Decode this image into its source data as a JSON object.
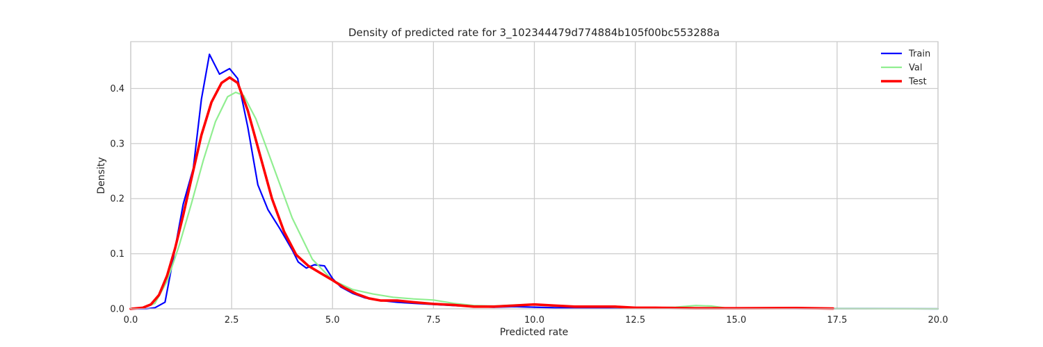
{
  "chart_data": {
    "type": "line",
    "title": "Density of predicted rate for 3_102344479d774884b105f00bc553288a",
    "xlabel": "Predicted rate",
    "ylabel": "Density",
    "xlim": [
      0,
      20
    ],
    "ylim": [
      0,
      0.485
    ],
    "x_ticks": [
      0,
      2.5,
      5,
      7.5,
      10,
      12.5,
      15,
      17.5,
      20
    ],
    "x_tick_labels": [
      "0.0",
      "2.5",
      "5.0",
      "7.5",
      "10.0",
      "12.5",
      "15.0",
      "17.5",
      "20.0"
    ],
    "y_ticks": [
      0,
      0.1,
      0.2,
      0.3,
      0.4
    ],
    "y_tick_labels": [
      "0.0",
      "0.1",
      "0.2",
      "0.3",
      "0.4"
    ],
    "grid": true,
    "legend_position": "top-right",
    "series": [
      {
        "name": "Train",
        "color": "#0000ff",
        "line_width": 2.2,
        "points": [
          [
            0.0,
            0.0
          ],
          [
            0.4,
            0.0
          ],
          [
            0.6,
            0.002
          ],
          [
            0.85,
            0.012
          ],
          [
            1.05,
            0.09
          ],
          [
            1.3,
            0.19
          ],
          [
            1.55,
            0.255
          ],
          [
            1.75,
            0.38
          ],
          [
            1.95,
            0.462
          ],
          [
            2.2,
            0.426
          ],
          [
            2.45,
            0.436
          ],
          [
            2.65,
            0.418
          ],
          [
            2.9,
            0.33
          ],
          [
            3.15,
            0.225
          ],
          [
            3.4,
            0.18
          ],
          [
            3.7,
            0.145
          ],
          [
            4.0,
            0.107
          ],
          [
            4.15,
            0.085
          ],
          [
            4.35,
            0.074
          ],
          [
            4.55,
            0.08
          ],
          [
            4.8,
            0.078
          ],
          [
            5.0,
            0.055
          ],
          [
            5.2,
            0.04
          ],
          [
            5.5,
            0.028
          ],
          [
            5.8,
            0.02
          ],
          [
            6.2,
            0.015
          ],
          [
            6.6,
            0.012
          ],
          [
            7.0,
            0.01
          ],
          [
            7.5,
            0.008
          ],
          [
            8.0,
            0.006
          ],
          [
            8.5,
            0.004
          ],
          [
            9.0,
            0.003
          ],
          [
            9.5,
            0.004
          ],
          [
            10.0,
            0.003
          ],
          [
            10.5,
            0.002
          ],
          [
            11.0,
            0.002
          ],
          [
            12.0,
            0.002
          ],
          [
            13.0,
            0.001
          ],
          [
            14.0,
            0.001
          ],
          [
            15.0,
            0.001
          ],
          [
            17.0,
            0.0005
          ],
          [
            20.0,
            0.0
          ]
        ]
      },
      {
        "name": "Val",
        "color": "#90ee90",
        "line_width": 2.2,
        "points": [
          [
            0.0,
            0.0
          ],
          [
            0.3,
            0.001
          ],
          [
            0.6,
            0.01
          ],
          [
            0.9,
            0.05
          ],
          [
            1.2,
            0.115
          ],
          [
            1.5,
            0.19
          ],
          [
            1.8,
            0.27
          ],
          [
            2.1,
            0.34
          ],
          [
            2.4,
            0.385
          ],
          [
            2.6,
            0.393
          ],
          [
            2.8,
            0.387
          ],
          [
            3.1,
            0.345
          ],
          [
            3.5,
            0.265
          ],
          [
            4.0,
            0.165
          ],
          [
            4.5,
            0.09
          ],
          [
            5.0,
            0.052
          ],
          [
            5.5,
            0.035
          ],
          [
            6.0,
            0.027
          ],
          [
            6.5,
            0.021
          ],
          [
            7.0,
            0.018
          ],
          [
            7.5,
            0.016
          ],
          [
            8.0,
            0.01
          ],
          [
            8.5,
            0.006
          ],
          [
            9.0,
            0.005
          ],
          [
            9.5,
            0.007
          ],
          [
            10.0,
            0.008
          ],
          [
            10.5,
            0.005
          ],
          [
            11.0,
            0.004
          ],
          [
            11.5,
            0.004
          ],
          [
            12.0,
            0.003
          ],
          [
            12.5,
            0.002
          ],
          [
            13.0,
            0.002
          ],
          [
            13.5,
            0.003
          ],
          [
            14.0,
            0.006
          ],
          [
            14.4,
            0.005
          ],
          [
            14.8,
            0.001
          ],
          [
            15.5,
            0.0005
          ],
          [
            16.5,
            0.001
          ],
          [
            17.5,
            0.0003
          ],
          [
            20.0,
            0.0
          ]
        ]
      },
      {
        "name": "Test",
        "color": "#ff0000",
        "line_width": 3.6,
        "points": [
          [
            0.0,
            0.0
          ],
          [
            0.3,
            0.002
          ],
          [
            0.5,
            0.008
          ],
          [
            0.7,
            0.025
          ],
          [
            0.9,
            0.06
          ],
          [
            1.1,
            0.11
          ],
          [
            1.3,
            0.17
          ],
          [
            1.5,
            0.235
          ],
          [
            1.75,
            0.315
          ],
          [
            2.0,
            0.375
          ],
          [
            2.25,
            0.41
          ],
          [
            2.45,
            0.42
          ],
          [
            2.65,
            0.41
          ],
          [
            2.9,
            0.36
          ],
          [
            3.2,
            0.28
          ],
          [
            3.5,
            0.2
          ],
          [
            3.8,
            0.14
          ],
          [
            4.1,
            0.098
          ],
          [
            4.4,
            0.078
          ],
          [
            4.7,
            0.065
          ],
          [
            5.0,
            0.052
          ],
          [
            5.3,
            0.038
          ],
          [
            5.6,
            0.027
          ],
          [
            5.9,
            0.019
          ],
          [
            6.2,
            0.015
          ],
          [
            6.6,
            0.015
          ],
          [
            7.0,
            0.012
          ],
          [
            7.5,
            0.009
          ],
          [
            8.0,
            0.007
          ],
          [
            8.5,
            0.004
          ],
          [
            9.0,
            0.004
          ],
          [
            9.5,
            0.006
          ],
          [
            10.0,
            0.008
          ],
          [
            10.5,
            0.006
          ],
          [
            11.0,
            0.004
          ],
          [
            11.5,
            0.004
          ],
          [
            12.0,
            0.004
          ],
          [
            12.5,
            0.002
          ],
          [
            13.0,
            0.002
          ],
          [
            14.0,
            0.001
          ],
          [
            15.0,
            0.001
          ],
          [
            16.5,
            0.0015
          ],
          [
            17.4,
            0.0005
          ]
        ]
      }
    ]
  }
}
